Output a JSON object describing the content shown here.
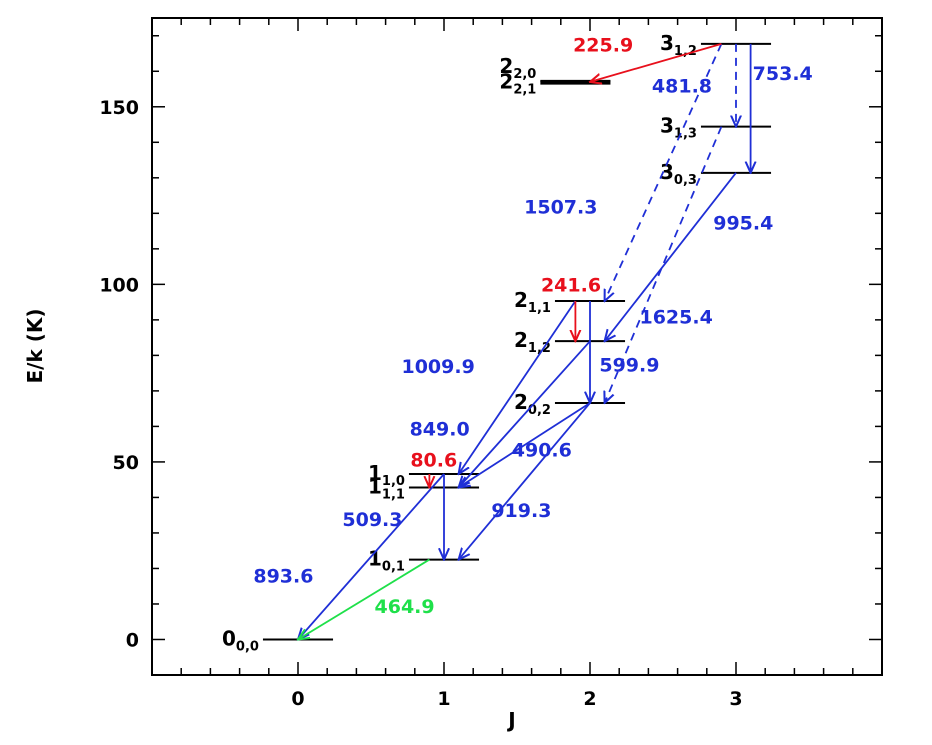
{
  "axes": {
    "xlabel": "J",
    "ylabel": "E/k (K)",
    "xlim": [
      -1,
      4
    ],
    "ylim": [
      -10,
      175
    ],
    "xticks": [
      "0",
      "1",
      "2",
      "3"
    ],
    "xtick_values": [
      0,
      1,
      2,
      3
    ],
    "yticks": [
      "0",
      "50",
      "100",
      "150"
    ],
    "ytick_values": [
      0,
      50,
      100,
      150
    ]
  },
  "colors": {
    "blue": "#1f2fd6",
    "red": "#e8101c",
    "green": "#1fe04a",
    "black": "#000000"
  },
  "levels": [
    {
      "id": "0_00",
      "j": 0,
      "energy": 0,
      "base": "0",
      "sub": "0,0",
      "side": "left"
    },
    {
      "id": "1_01",
      "j": 1,
      "energy": 22.5,
      "base": "1",
      "sub": "0,1",
      "side": "left"
    },
    {
      "id": "1_11",
      "j": 1,
      "energy": 42.8,
      "base": "1",
      "sub": "1,1",
      "side": "left"
    },
    {
      "id": "1_10",
      "j": 1,
      "energy": 46.6,
      "base": "1",
      "sub": "1,0",
      "side": "left"
    },
    {
      "id": "2_02",
      "j": 2,
      "energy": 66.6,
      "base": "2",
      "sub": "0,2",
      "side": "left"
    },
    {
      "id": "2_12",
      "j": 2,
      "energy": 84.0,
      "base": "2",
      "sub": "1,2",
      "side": "left"
    },
    {
      "id": "2_11",
      "j": 2,
      "energy": 95.3,
      "base": "2",
      "sub": "1,1",
      "side": "left"
    },
    {
      "id": "2_21",
      "j": 1.9,
      "energy": 156.8,
      "base": "2",
      "sub": "2,1",
      "side": "left",
      "thick": true
    },
    {
      "id": "2_20",
      "j": 1.9,
      "energy": 157.3,
      "base": "2",
      "sub": "2,0",
      "side": "left",
      "label_above": true
    },
    {
      "id": "3_03",
      "j": 3,
      "energy": 131.4,
      "base": "3",
      "sub": "0,3",
      "side": "left"
    },
    {
      "id": "3_13",
      "j": 3,
      "energy": 144.4,
      "base": "3",
      "sub": "1,3",
      "side": "left"
    },
    {
      "id": "3_12",
      "j": 3,
      "energy": 167.7,
      "base": "3",
      "sub": "1,2",
      "side": "left"
    }
  ],
  "transitions": [
    {
      "label": "893.6",
      "color": "blue",
      "dashed": false,
      "from": [
        1.0,
        46.6
      ],
      "to": [
        0.0,
        0.0
      ],
      "text_at": [
        -0.1,
        16
      ]
    },
    {
      "label": "464.9",
      "color": "green",
      "dashed": false,
      "from": [
        0.9,
        22.5
      ],
      "to": [
        0.0,
        0.0
      ],
      "text_at": [
        0.73,
        7.5
      ]
    },
    {
      "label": "509.3",
      "color": "blue",
      "dashed": false,
      "from": [
        1.0,
        46.6
      ],
      "to": [
        1.0,
        22.5
      ],
      "text_at": [
        0.51,
        32
      ]
    },
    {
      "label": "80.6",
      "color": "red",
      "dashed": false,
      "from": [
        0.9,
        46.6
      ],
      "to": [
        0.9,
        42.8
      ],
      "text_at": [
        0.93,
        48.7
      ]
    },
    {
      "label": "919.3",
      "color": "blue",
      "dashed": false,
      "from": [
        2.0,
        66.6
      ],
      "to": [
        1.1,
        22.5
      ],
      "text_at": [
        1.53,
        34.5
      ]
    },
    {
      "label": "849.0",
      "color": "blue",
      "dashed": false,
      "from": [
        2.0,
        84.0
      ],
      "to": [
        1.1,
        42.8
      ],
      "text_at": [
        0.97,
        57.4
      ]
    },
    {
      "label": "1009.9",
      "color": "blue",
      "dashed": false,
      "from": [
        1.9,
        95.3
      ],
      "to": [
        1.1,
        46.6
      ],
      "text_at": [
        0.96,
        75
      ]
    },
    {
      "label": "490.6",
      "color": "blue",
      "dashed": false,
      "from": [
        2.0,
        66.6
      ],
      "to": [
        1.1,
        42.8
      ],
      "text_at": [
        1.67,
        51.5
      ]
    },
    {
      "label": "241.6",
      "color": "red",
      "dashed": false,
      "from": [
        1.9,
        95.3
      ],
      "to": [
        1.9,
        84.0
      ],
      "text_at": [
        1.87,
        98
      ]
    },
    {
      "label": "599.9",
      "color": "blue",
      "dashed": false,
      "from": [
        2.0,
        95.3
      ],
      "to": [
        2.0,
        66.6
      ],
      "text_at": [
        2.27,
        75.5
      ]
    },
    {
      "label": "1625.4",
      "color": "blue",
      "dashed": false,
      "from": [
        3.0,
        131.4
      ],
      "to": [
        2.1,
        84.0
      ],
      "text_at": [
        2.59,
        89
      ]
    },
    {
      "label": "995.4",
      "color": "blue",
      "dashed": true,
      "from": [
        2.9,
        144.4
      ],
      "to": [
        2.1,
        66.6
      ],
      "text_at": [
        3.05,
        115.5
      ]
    },
    {
      "label": "1507.3",
      "color": "blue",
      "dashed": true,
      "from": [
        2.9,
        167.7
      ],
      "to": [
        2.1,
        95.3
      ],
      "text_at": [
        1.8,
        120
      ]
    },
    {
      "label": "481.8",
      "color": "blue",
      "dashed": true,
      "from": [
        3.0,
        167.7
      ],
      "to": [
        3.0,
        144.4
      ],
      "text_at": [
        2.63,
        154
      ]
    },
    {
      "label": "753.4",
      "color": "blue",
      "dashed": false,
      "from": [
        3.1,
        167.7
      ],
      "to": [
        3.1,
        131.4
      ],
      "text_at": [
        3.32,
        157.5
      ]
    },
    {
      "label": "225.9",
      "color": "red",
      "dashed": false,
      "from": [
        2.9,
        167.7
      ],
      "to": [
        2.0,
        157.0
      ],
      "text_at": [
        2.09,
        165.5
      ]
    }
  ]
}
